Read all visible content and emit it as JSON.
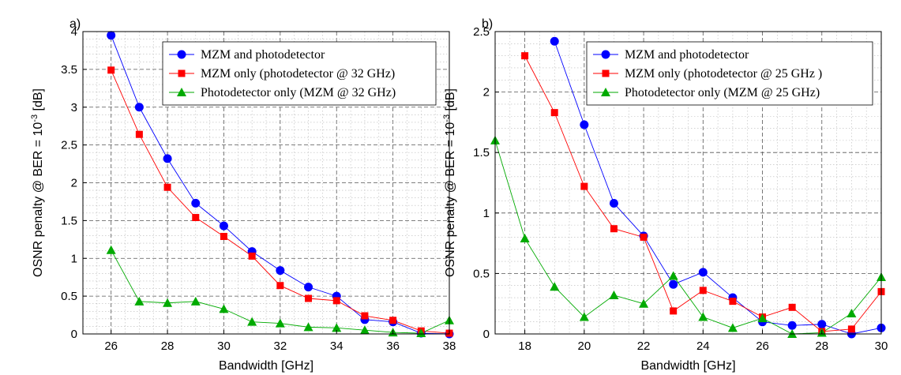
{
  "chart_data": [
    {
      "type": "line",
      "panel_label": "a)",
      "xlabel": "Bandwidth [GHz]",
      "ylabel_main": "OSNR penalty @ BER = 10",
      "ylabel_exp": "-3",
      "ylabel_unit": " [dB]",
      "xlim": [
        25,
        38
      ],
      "ylim": [
        0,
        4
      ],
      "xticks": [
        26,
        28,
        30,
        32,
        34,
        36,
        38
      ],
      "yticks": [
        0,
        0.5,
        1,
        1.5,
        2,
        2.5,
        3,
        3.5,
        4
      ],
      "grid": true,
      "legend_position": "top-right",
      "series": [
        {
          "name": "MZM and photodetector",
          "color": "#0000ff",
          "marker": "circle",
          "x": [
            26,
            27,
            28,
            29,
            30,
            31,
            32,
            33,
            34,
            35,
            36,
            37,
            38
          ],
          "y": [
            3.95,
            3.0,
            2.32,
            1.73,
            1.43,
            1.09,
            0.84,
            0.62,
            0.5,
            0.19,
            0.16,
            0.01,
            0.0
          ]
        },
        {
          "name": "MZM only (photodetector @ 32 GHz)",
          "color": "#ff0000",
          "marker": "square",
          "x": [
            26,
            27,
            28,
            29,
            30,
            31,
            32,
            33,
            34,
            35,
            36,
            37,
            38
          ],
          "y": [
            3.49,
            2.64,
            1.94,
            1.54,
            1.29,
            1.03,
            0.64,
            0.47,
            0.44,
            0.24,
            0.18,
            0.04,
            0.01
          ]
        },
        {
          "name": "Photodetector only (MZM @ 32 GHz)",
          "color": "#00aa00",
          "marker": "triangle",
          "x": [
            26,
            27,
            28,
            29,
            30,
            31,
            32,
            33,
            34,
            35,
            36,
            37,
            38
          ],
          "y": [
            1.11,
            0.43,
            0.41,
            0.43,
            0.33,
            0.16,
            0.14,
            0.09,
            0.08,
            0.05,
            0.02,
            0.01,
            0.18
          ]
        }
      ]
    },
    {
      "type": "line",
      "panel_label": "b)",
      "xlabel": "Bandwidth [GHz]",
      "ylabel_main": "OSNR penalty @ BER = 10",
      "ylabel_exp": "-3",
      "ylabel_unit": " [dB]",
      "xlim": [
        17,
        30
      ],
      "ylim": [
        0,
        2.5
      ],
      "xticks": [
        18,
        20,
        22,
        24,
        26,
        28,
        30
      ],
      "yticks": [
        0,
        0.5,
        1,
        1.5,
        2,
        2.5
      ],
      "grid": true,
      "legend_position": "top-right",
      "series": [
        {
          "name": "MZM and photodetector",
          "color": "#0000ff",
          "marker": "circle",
          "x": [
            19,
            20,
            21,
            22,
            23,
            24,
            25,
            26,
            27,
            28,
            29,
            30
          ],
          "y": [
            2.42,
            1.73,
            1.08,
            0.81,
            0.41,
            0.51,
            0.3,
            0.1,
            0.07,
            0.08,
            0.0,
            0.05
          ]
        },
        {
          "name": "MZM only (photodetector @ 25 GHz )",
          "color": "#ff0000",
          "marker": "square",
          "x": [
            18,
            19,
            20,
            21,
            22,
            23,
            24,
            25,
            26,
            27,
            28,
            29,
            30
          ],
          "y": [
            2.3,
            1.83,
            1.22,
            0.87,
            0.8,
            0.19,
            0.36,
            0.27,
            0.14,
            0.22,
            0.02,
            0.04,
            0.35
          ]
        },
        {
          "name": "Photodetector only (MZM @ 25 GHz)",
          "color": "#00aa00",
          "marker": "triangle",
          "x": [
            17,
            18,
            19,
            20,
            21,
            22,
            23,
            24,
            25,
            26,
            27,
            28,
            29,
            30
          ],
          "y": [
            1.6,
            0.79,
            0.39,
            0.14,
            0.32,
            0.25,
            0.48,
            0.14,
            0.05,
            0.13,
            0.0,
            0.01,
            0.17,
            0.47
          ]
        }
      ]
    }
  ]
}
